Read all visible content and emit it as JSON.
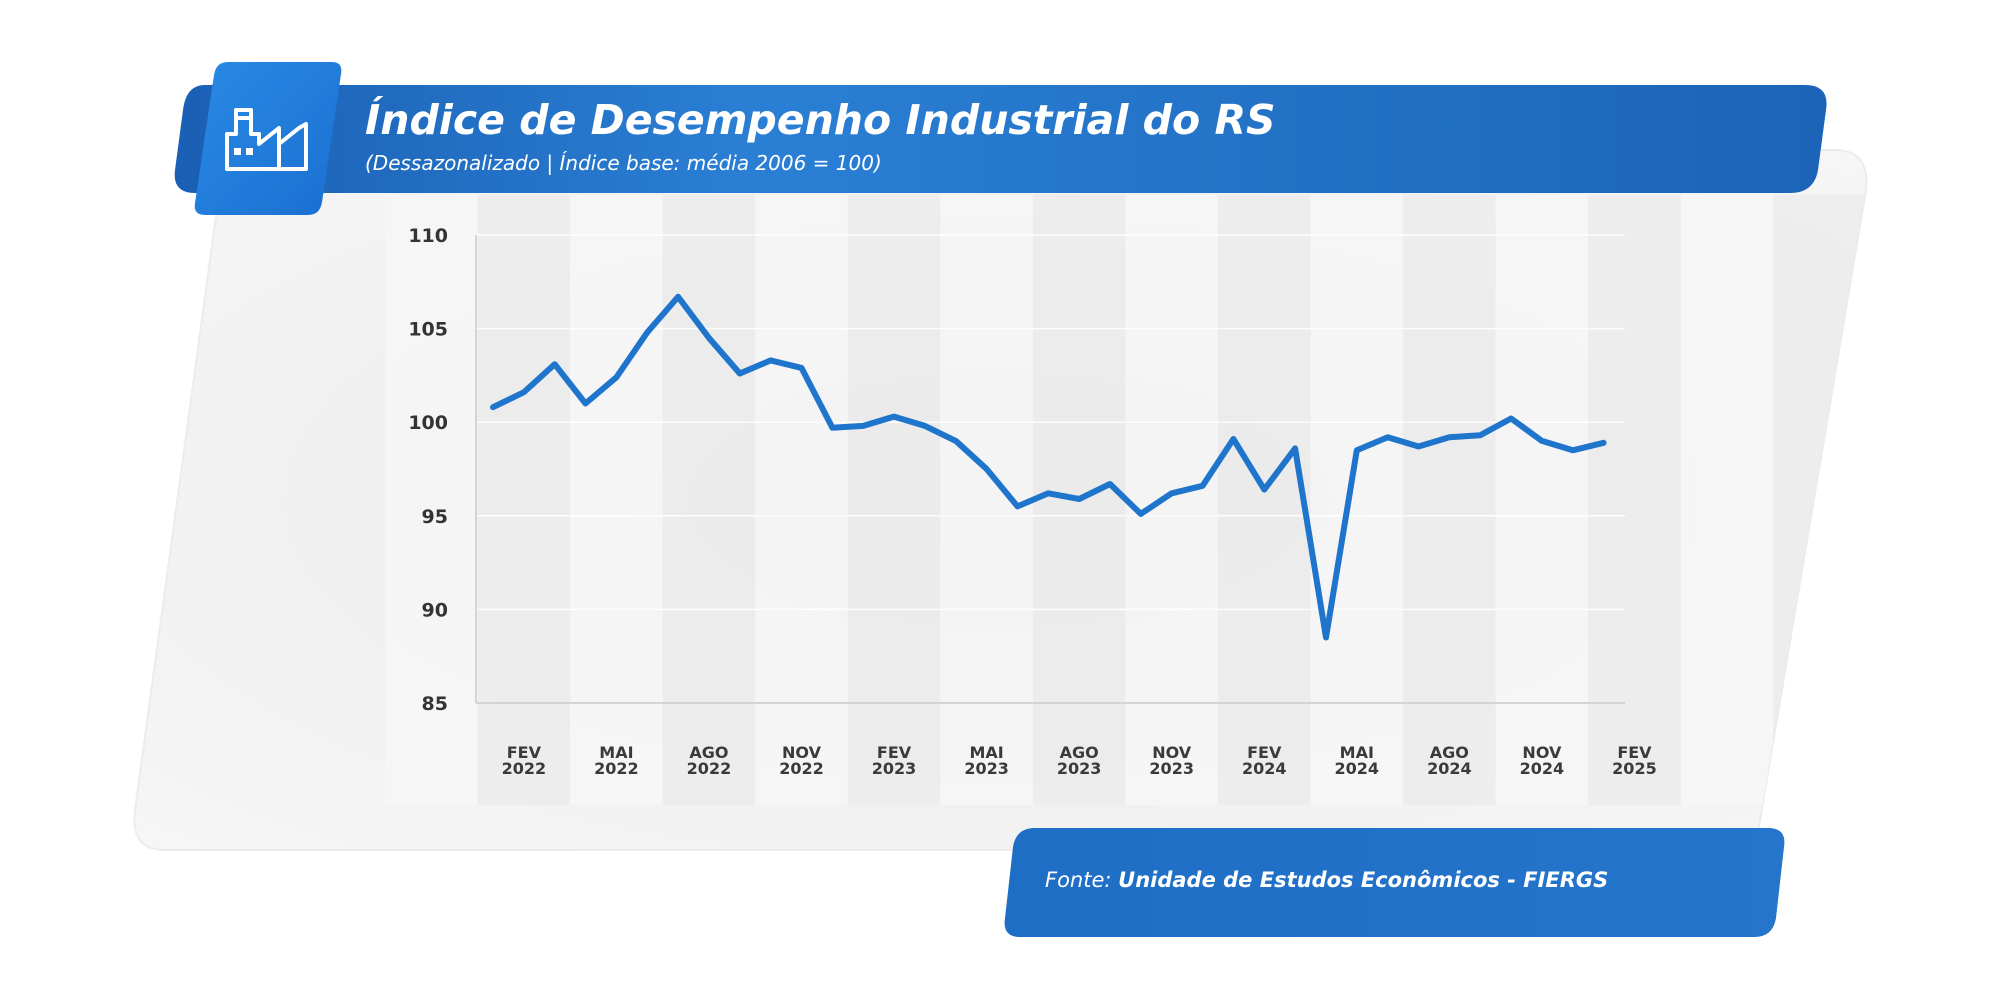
{
  "header": {
    "title": "Índice de Desempenho Industrial do RS",
    "subtitle": "(Dessazonalizado | Índice base: média 2006 = 100)",
    "icon": "factory-icon"
  },
  "footer": {
    "source_prefix": "Fonte:",
    "source_name": "Unidade de Estudos Econômicos - FIERGS"
  },
  "colors": {
    "header_blue": "#1f6fc5",
    "line_blue": "#1f75cc",
    "panel_gray": "#f2f2f2"
  },
  "chart_data": {
    "type": "line",
    "title": "Índice de Desempenho Industrial do RS",
    "subtitle": "(Dessazonalizado | Índice base: média 2006 = 100)",
    "ylim": [
      85,
      110
    ],
    "yticks": [
      85,
      90,
      95,
      100,
      105,
      110
    ],
    "x_tick_labels": [
      {
        "month": "FEV",
        "year": "2022",
        "index": 1
      },
      {
        "month": "MAI",
        "year": "2022",
        "index": 4
      },
      {
        "month": "AGO",
        "year": "2022",
        "index": 7
      },
      {
        "month": "NOV",
        "year": "2022",
        "index": 10
      },
      {
        "month": "FEV",
        "year": "2023",
        "index": 13
      },
      {
        "month": "MAI",
        "year": "2023",
        "index": 16
      },
      {
        "month": "AGO",
        "year": "2023",
        "index": 19
      },
      {
        "month": "NOV",
        "year": "2023",
        "index": 22
      },
      {
        "month": "FEV",
        "year": "2024",
        "index": 25
      },
      {
        "month": "MAI",
        "year": "2024",
        "index": 28
      },
      {
        "month": "AGO",
        "year": "2024",
        "index": 31
      },
      {
        "month": "NOV",
        "year": "2024",
        "index": 34
      },
      {
        "month": "FEV",
        "year": "2025",
        "index": 37
      }
    ],
    "series": [
      {
        "values": [
          100.8,
          101.6,
          103.1,
          101.0,
          102.4,
          104.8,
          106.7,
          104.5,
          102.6,
          103.3,
          102.9,
          99.7,
          99.8,
          100.3,
          99.8,
          99.0,
          97.5,
          95.5,
          96.2,
          95.9,
          96.7,
          95.1,
          96.2,
          96.6,
          99.1,
          96.4,
          98.6,
          88.5,
          98.5,
          99.2,
          98.7,
          99.2,
          99.3,
          100.2,
          99.0,
          98.5,
          98.9
        ]
      }
    ]
  }
}
